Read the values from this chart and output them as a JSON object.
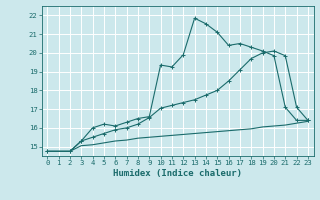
{
  "xlabel": "Humidex (Indice chaleur)",
  "bg_color": "#cce8ec",
  "grid_color": "#ffffff",
  "line_color": "#1a6b6b",
  "x_ticks": [
    0,
    1,
    2,
    3,
    4,
    5,
    6,
    7,
    8,
    9,
    10,
    11,
    12,
    13,
    14,
    15,
    16,
    17,
    18,
    19,
    20,
    21,
    22,
    23
  ],
  "y_ticks": [
    15,
    16,
    17,
    18,
    19,
    20,
    21,
    22
  ],
  "xlim": [
    -0.5,
    23.5
  ],
  "ylim": [
    14.5,
    22.5
  ],
  "line1_x": [
    0,
    2,
    3,
    4,
    5,
    6,
    7,
    8,
    9,
    10,
    11,
    12,
    13,
    14,
    15,
    16,
    17,
    18,
    19,
    20,
    21,
    22,
    23
  ],
  "line1_y": [
    14.75,
    14.75,
    15.3,
    16.0,
    16.2,
    16.1,
    16.3,
    16.5,
    16.6,
    19.35,
    19.25,
    19.9,
    21.85,
    21.55,
    21.1,
    20.4,
    20.5,
    20.3,
    20.1,
    19.85,
    17.1,
    16.4,
    16.4
  ],
  "line2_x": [
    0,
    2,
    3,
    4,
    5,
    6,
    7,
    8,
    9,
    10,
    11,
    12,
    13,
    14,
    15,
    16,
    17,
    18,
    19,
    20,
    21,
    22,
    23
  ],
  "line2_y": [
    14.75,
    14.75,
    15.3,
    15.5,
    15.7,
    15.9,
    16.0,
    16.2,
    16.55,
    17.05,
    17.2,
    17.35,
    17.5,
    17.75,
    18.0,
    18.5,
    19.1,
    19.7,
    20.0,
    20.1,
    19.85,
    17.1,
    16.4
  ],
  "line3_x": [
    0,
    2,
    3,
    4,
    5,
    6,
    7,
    8,
    9,
    10,
    11,
    12,
    13,
    14,
    15,
    16,
    17,
    18,
    19,
    20,
    21,
    22,
    23
  ],
  "line3_y": [
    14.75,
    14.75,
    15.05,
    15.1,
    15.2,
    15.3,
    15.35,
    15.45,
    15.5,
    15.55,
    15.6,
    15.65,
    15.7,
    15.75,
    15.8,
    15.85,
    15.9,
    15.95,
    16.05,
    16.1,
    16.15,
    16.25,
    16.35
  ],
  "xlabel_fontsize": 6.5,
  "tick_fontsize": 5.2
}
